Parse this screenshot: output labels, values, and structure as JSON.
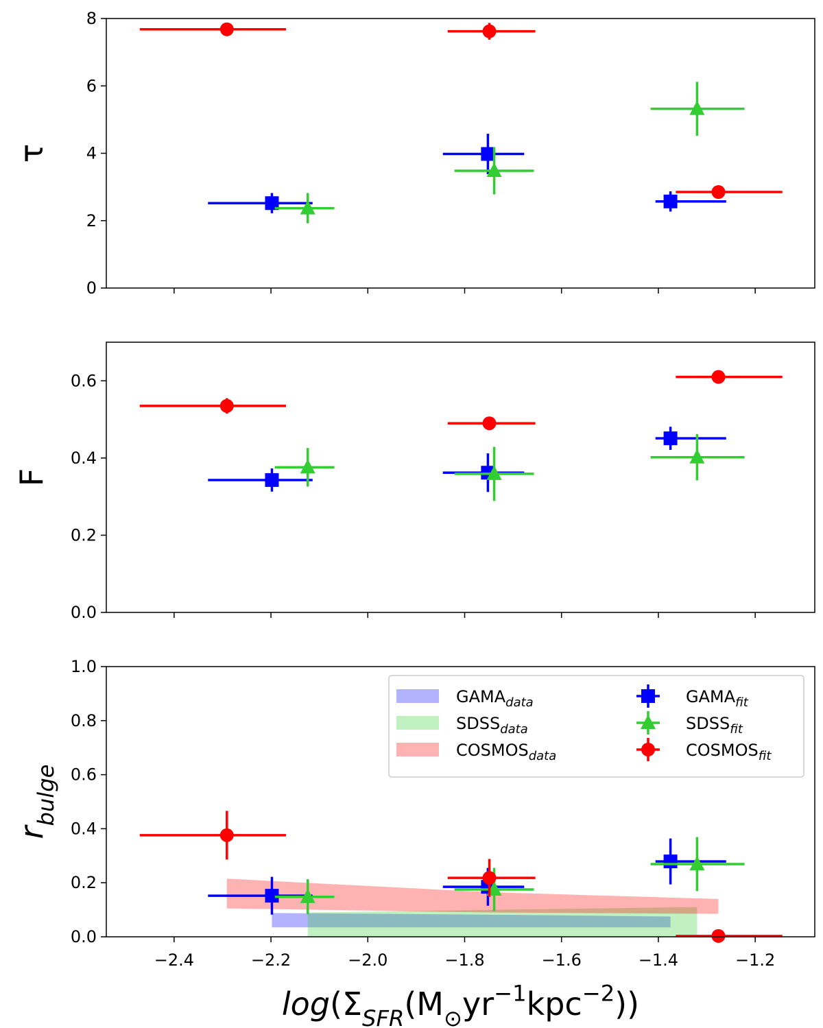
{
  "chart_data": [
    {
      "type": "errorbar",
      "ylabel": [
        {
          "text": "τ",
          "style": "normal"
        }
      ],
      "xlim": [
        -2.54,
        -1.077
      ],
      "xticks": [
        -2.4,
        -2.2,
        -2.0,
        -1.8,
        -1.6,
        -1.4,
        -1.2
      ],
      "show_xtick_labels": false,
      "ylim": [
        0,
        8
      ],
      "yticks": [
        0,
        2,
        4,
        6,
        8
      ],
      "series": [
        {
          "color": "#0000ff",
          "marker": "square",
          "x": [
            -2.198,
            -1.752,
            -1.375
          ],
          "xerr": [
            [
              0.132,
              0.084
            ],
            [
              0.093,
              0.075
            ],
            [
              0.031,
              0.115
            ]
          ],
          "values": [
            2.52,
            3.98,
            2.57
          ],
          "yerr": [
            0.3,
            0.6,
            0.3
          ]
        },
        {
          "color": "#32cd32",
          "marker": "triangle",
          "x": [
            -2.124,
            -1.739,
            -1.32
          ],
          "xerr": [
            [
              0.068,
              0.055
            ],
            [
              0.082,
              0.082
            ],
            [
              0.096,
              0.098
            ]
          ],
          "values": [
            2.37,
            3.48,
            5.32
          ],
          "yerr": [
            0.45,
            0.7,
            0.8
          ]
        },
        {
          "color": "#ff0000",
          "marker": "circle",
          "x": [
            -2.291,
            -1.749,
            -1.276
          ],
          "xerr": [
            [
              0.18,
              0.122
            ],
            [
              0.086,
              0.095
            ],
            [
              0.088,
              0.132
            ]
          ],
          "values": [
            7.68,
            7.62,
            2.85
          ],
          "yerr": [
            0.1,
            0.25,
            0.1
          ]
        }
      ]
    },
    {
      "type": "errorbar",
      "ylabel": [
        {
          "text": "F",
          "style": "normal"
        }
      ],
      "xlim": [
        -2.54,
        -1.077
      ],
      "xticks": [
        -2.4,
        -2.2,
        -2.0,
        -1.8,
        -1.6,
        -1.4,
        -1.2
      ],
      "show_xtick_labels": false,
      "ylim": [
        0,
        0.7
      ],
      "yticks": [
        {
          "value": 0,
          "label": "0.0"
        },
        0.2,
        0.4,
        0.6
      ],
      "series": [
        {
          "color": "#0000ff",
          "marker": "square",
          "x": [
            -2.198,
            -1.752,
            -1.375
          ],
          "xerr": [
            [
              0.132,
              0.084
            ],
            [
              0.093,
              0.075
            ],
            [
              0.031,
              0.115
            ]
          ],
          "values": [
            0.343,
            0.362,
            0.451
          ],
          "yerr": [
            0.03,
            0.05,
            0.03
          ]
        },
        {
          "color": "#32cd32",
          "marker": "triangle",
          "x": [
            -2.124,
            -1.739,
            -1.32
          ],
          "xerr": [
            [
              0.068,
              0.055
            ],
            [
              0.082,
              0.082
            ],
            [
              0.096,
              0.098
            ]
          ],
          "values": [
            0.376,
            0.359,
            0.402
          ],
          "yerr": [
            0.05,
            0.07,
            0.06
          ]
        },
        {
          "color": "#ff0000",
          "marker": "circle",
          "x": [
            -2.291,
            -1.749,
            -1.276
          ],
          "xerr": [
            [
              0.18,
              0.122
            ],
            [
              0.086,
              0.095
            ],
            [
              0.088,
              0.132
            ]
          ],
          "values": [
            0.535,
            0.49,
            0.61
          ],
          "yerr": [
            0.02,
            0.015,
            0.005
          ]
        }
      ]
    },
    {
      "type": "errorbar",
      "ylabel": [
        {
          "text": "r",
          "style": "italic"
        },
        {
          "text": "bulge",
          "style": "sub-italic"
        }
      ],
      "xlabel": [
        {
          "text": "log",
          "style": "italic"
        },
        {
          "text": "(Σ",
          "style": "normal"
        },
        {
          "text": "SFR",
          "style": "sub-italic"
        },
        {
          "text": "(M",
          "style": "normal"
        },
        {
          "text": "⊙",
          "style": "sub"
        },
        {
          "text": "yr",
          "style": "normal"
        },
        {
          "text": "−1",
          "style": "sup"
        },
        {
          "text": "kpc",
          "style": "normal"
        },
        {
          "text": "−2",
          "style": "sup"
        },
        {
          "text": "))",
          "style": "normal"
        }
      ],
      "xlim": [
        -2.54,
        -1.077
      ],
      "xticks": [
        {
          "value": -2.4,
          "label": "−2.4"
        },
        {
          "value": -2.2,
          "label": "−2.2"
        },
        {
          "value": -2.0,
          "label": "−2.0"
        },
        {
          "value": -1.8,
          "label": "−1.8"
        },
        {
          "value": -1.6,
          "label": "−1.6"
        },
        {
          "value": -1.4,
          "label": "−1.4"
        },
        {
          "value": -1.2,
          "label": "−1.2"
        }
      ],
      "show_xtick_labels": true,
      "ylim": [
        0,
        1
      ],
      "yticks": [
        {
          "value": 0,
          "label": "0.0"
        },
        0.2,
        0.4,
        0.6,
        0.8,
        {
          "value": 1,
          "label": "1.0"
        }
      ],
      "legend": "upper right",
      "legend_ncol": 2,
      "bands": [
        {
          "name": "GAMA",
          "sub": "data",
          "color": "#0000ff",
          "opacity": 0.3,
          "x": [
            -2.198,
            -1.752,
            -1.375
          ],
          "low": [
            0.035,
            0.035,
            0.035
          ],
          "high": [
            0.088,
            0.082,
            0.075
          ]
        },
        {
          "name": "SDSS",
          "sub": "data",
          "color": "#32cd32",
          "opacity": 0.3,
          "x": [
            -2.124,
            -1.739,
            -1.32
          ],
          "low": [
            0,
            0,
            0
          ],
          "high": [
            0.09,
            0.1,
            0.11
          ]
        },
        {
          "name": "COSMOS",
          "sub": "data",
          "color": "#ff0000",
          "opacity": 0.3,
          "x": [
            -2.291,
            -1.749,
            -1.276
          ],
          "low": [
            0.105,
            0.09,
            0.085
          ],
          "high": [
            0.215,
            0.165,
            0.14
          ]
        }
      ],
      "series": [
        {
          "name": "GAMA",
          "sub": "fit",
          "color": "#0000ff",
          "marker": "square",
          "x": [
            -2.198,
            -1.752,
            -1.375
          ],
          "xerr": [
            [
              0.132,
              0.084
            ],
            [
              0.093,
              0.075
            ],
            [
              0.031,
              0.115
            ]
          ],
          "values": [
            0.152,
            0.185,
            0.279
          ],
          "yerr": [
            0.07,
            0.07,
            0.085
          ]
        },
        {
          "name": "SDSS",
          "sub": "fit",
          "color": "#32cd32",
          "marker": "triangle",
          "x": [
            -2.124,
            -1.739,
            -1.32
          ],
          "xerr": [
            [
              0.068,
              0.055
            ],
            [
              0.082,
              0.082
            ],
            [
              0.096,
              0.098
            ]
          ],
          "values": [
            0.148,
            0.175,
            0.269
          ],
          "yerr": [
            0.065,
            0.08,
            0.1
          ]
        },
        {
          "name": "COSMOS",
          "sub": "fit",
          "color": "#ff0000",
          "marker": "circle",
          "x": [
            -2.291,
            -1.749,
            -1.276
          ],
          "xerr": [
            [
              0.18,
              0.122
            ],
            [
              0.086,
              0.095
            ],
            [
              0.088,
              0.132
            ]
          ],
          "values": [
            0.376,
            0.218,
            0.003
          ],
          "yerr": [
            0.09,
            0.07,
            0.003
          ]
        }
      ]
    }
  ]
}
